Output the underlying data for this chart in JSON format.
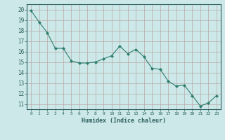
{
  "x": [
    0,
    1,
    2,
    3,
    4,
    5,
    6,
    7,
    8,
    9,
    10,
    11,
    12,
    13,
    14,
    15,
    16,
    17,
    18,
    19,
    20,
    21,
    22,
    23
  ],
  "y": [
    19.9,
    18.8,
    17.8,
    16.3,
    16.3,
    15.1,
    14.9,
    14.9,
    15.0,
    15.3,
    15.6,
    16.5,
    15.8,
    16.2,
    15.5,
    14.4,
    14.3,
    13.2,
    12.7,
    12.8,
    11.8,
    10.8,
    11.1,
    11.8
  ],
  "line_color": "#2e7d6e",
  "marker": "D",
  "marker_size": 2,
  "bg_color": "#cce8e8",
  "grid_major_color": "#b8a8a8",
  "grid_minor_color": "#d8c8c8",
  "tick_color": "#2e6060",
  "label_color": "#2e6060",
  "xlabel": "Humidex (Indice chaleur)",
  "xlim": [
    -0.5,
    23.5
  ],
  "ylim": [
    10.5,
    20.5
  ],
  "yticks": [
    11,
    12,
    13,
    14,
    15,
    16,
    17,
    18,
    19,
    20
  ],
  "xticks": [
    0,
    1,
    2,
    3,
    4,
    5,
    6,
    7,
    8,
    9,
    10,
    11,
    12,
    13,
    14,
    15,
    16,
    17,
    18,
    19,
    20,
    21,
    22,
    23
  ]
}
